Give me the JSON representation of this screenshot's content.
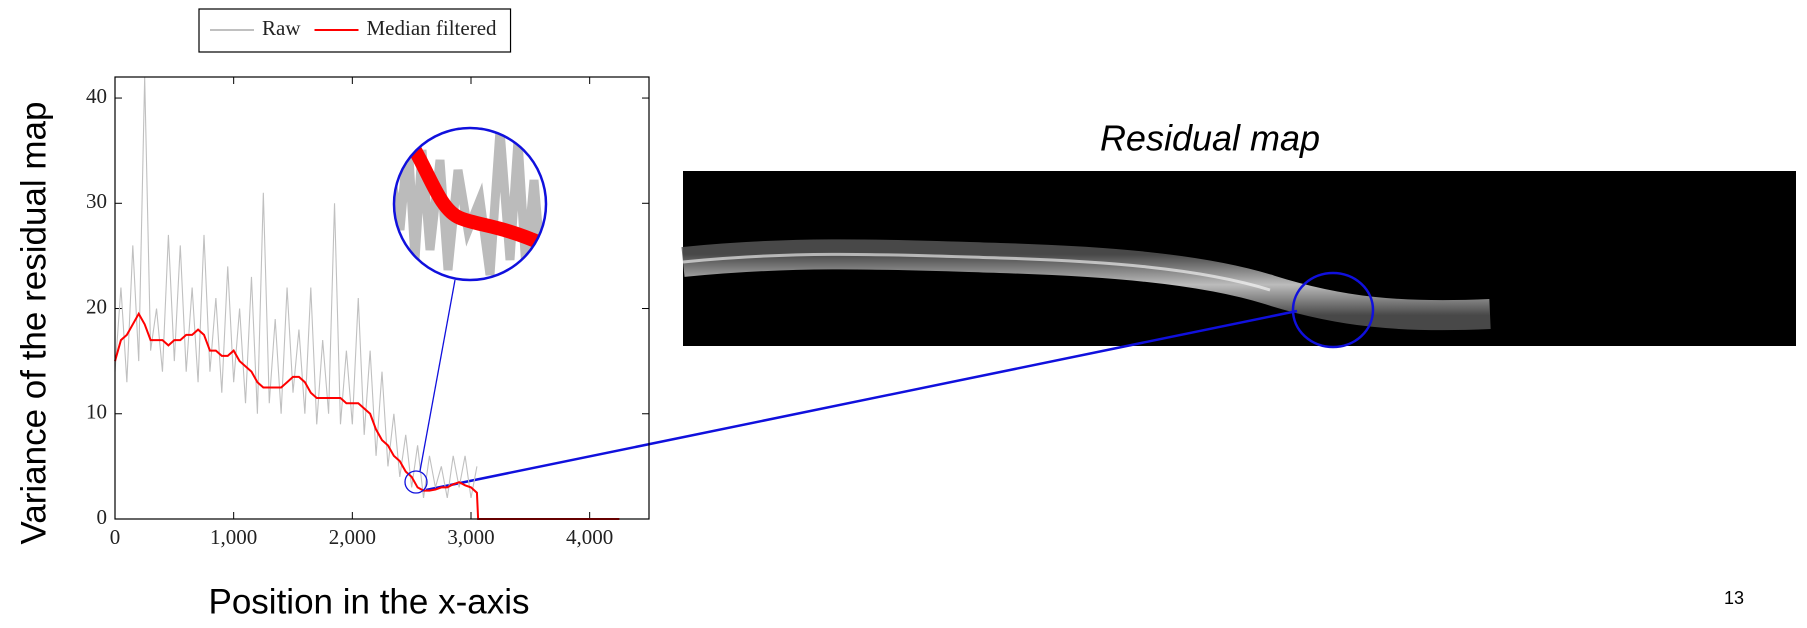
{
  "chart_data": {
    "type": "line",
    "x_label": "Position in the x-axis",
    "y_label": "Variance of the residual map",
    "x": [
      0,
      50,
      100,
      150,
      200,
      250,
      300,
      350,
      400,
      450,
      500,
      550,
      600,
      650,
      700,
      750,
      800,
      850,
      900,
      950,
      1000,
      1050,
      1100,
      1150,
      1200,
      1250,
      1300,
      1350,
      1400,
      1450,
      1500,
      1550,
      1600,
      1650,
      1700,
      1750,
      1800,
      1850,
      1900,
      1950,
      2000,
      2050,
      2100,
      2150,
      2200,
      2250,
      2300,
      2350,
      2400,
      2450,
      2500,
      2550,
      2600,
      2650,
      2700,
      2750,
      2800,
      2850,
      2900,
      2950,
      3000,
      3050,
      3060,
      4250
    ],
    "series": [
      {
        "name": "Raw",
        "color": "#c0c0c0",
        "values": [
          14,
          22,
          13,
          26,
          15,
          42,
          16,
          20,
          14,
          27,
          15,
          26,
          14,
          22,
          13,
          27,
          14,
          21,
          12,
          24,
          13,
          20,
          11,
          23,
          10,
          31,
          11,
          19,
          10,
          22,
          12,
          18,
          10,
          22,
          9,
          17,
          10,
          30,
          9,
          16,
          9,
          21,
          8,
          16,
          6,
          14,
          5,
          10,
          4,
          8,
          3,
          7,
          2,
          6,
          3,
          5,
          2,
          6,
          3,
          6,
          2,
          5,
          null,
          null
        ]
      },
      {
        "name": "Median filtered",
        "color": "#ff0000",
        "values": [
          15,
          17,
          17.5,
          18.5,
          19.5,
          18.5,
          17,
          17,
          17,
          16.5,
          17,
          17,
          17.5,
          17.5,
          18,
          17.5,
          16,
          16,
          15.5,
          15.5,
          16,
          15,
          14.5,
          14,
          13,
          12.5,
          12.5,
          12.5,
          12.5,
          13,
          13.5,
          13.5,
          13,
          12,
          11.5,
          11.5,
          11.5,
          11.5,
          11.5,
          11,
          11,
          11,
          10.5,
          10,
          8.5,
          7.5,
          7,
          6,
          5.5,
          4.5,
          4,
          3,
          2.7,
          2.7,
          2.8,
          3,
          3,
          3.3,
          3.5,
          3.2,
          3,
          2.5,
          0,
          0
        ]
      }
    ],
    "xlim": [
      0,
      4500
    ],
    "ylim": [
      0,
      42
    ],
    "xticks": [
      0,
      {
        "value": 1000,
        "label": "1,000"
      },
      {
        "value": 2000,
        "label": "2,000"
      },
      {
        "value": 3000,
        "label": "3,000"
      },
      {
        "value": 4000,
        "label": "4,000"
      }
    ],
    "yticks": [
      0,
      10,
      20,
      30,
      40
    ],
    "grid": false
  },
  "image_title": "Residual map",
  "page_number": "13"
}
